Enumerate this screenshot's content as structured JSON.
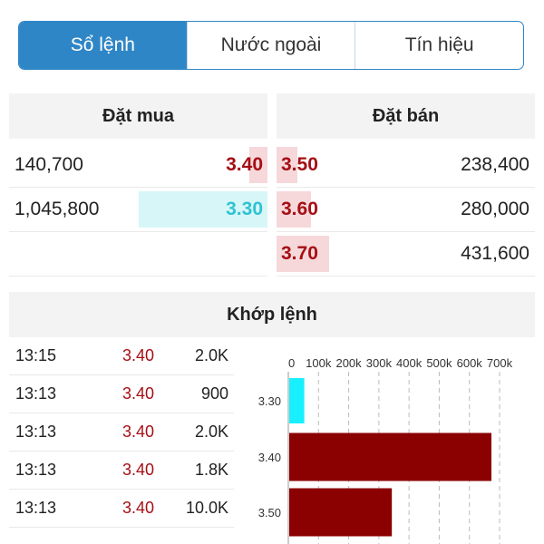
{
  "tabs": [
    {
      "label": "Sổ lệnh",
      "active": true
    },
    {
      "label": "Nước ngoài",
      "active": false
    },
    {
      "label": "Tín hiệu",
      "active": false
    }
  ],
  "order_book": {
    "buy_header": "Đặt mua",
    "sell_header": "Đặt bán",
    "rows": [
      {
        "buy_volume": "140,700",
        "buy_price": "3.40",
        "sell_price": "3.50",
        "sell_volume": "238,400"
      },
      {
        "buy_volume": "1,045,800",
        "buy_price": "3.30",
        "sell_price": "3.60",
        "sell_volume": "280,000"
      },
      {
        "buy_volume": "",
        "buy_price": "",
        "sell_price": "3.70",
        "sell_volume": "431,600"
      }
    ]
  },
  "matched": {
    "header": "Khớp lệnh",
    "trades": [
      {
        "time": "13:15",
        "price": "3.40",
        "volume": "2.0K"
      },
      {
        "time": "13:13",
        "price": "3.40",
        "volume": "900"
      },
      {
        "time": "13:13",
        "price": "3.40",
        "volume": "2.0K"
      },
      {
        "time": "13:13",
        "price": "3.40",
        "volume": "1.8K"
      },
      {
        "time": "13:13",
        "price": "3.40",
        "volume": "10.0K"
      }
    ]
  },
  "chart_data": {
    "type": "bar",
    "orientation": "horizontal",
    "categories": [
      "3.30",
      "3.40",
      "3.50"
    ],
    "values": [
      50000,
      670000,
      340000
    ],
    "colors": [
      "#19f0ff",
      "#8b0000",
      "#8b0000"
    ],
    "xlim": [
      0,
      700000
    ],
    "xticks": [
      "0",
      "100k",
      "200k",
      "300k",
      "400k",
      "500k",
      "600k",
      "700k"
    ],
    "grid": true
  },
  "colors": {
    "accent": "#2f86c6",
    "sell_red": "#a50f15",
    "buy_cyan": "#2fc3d2"
  }
}
